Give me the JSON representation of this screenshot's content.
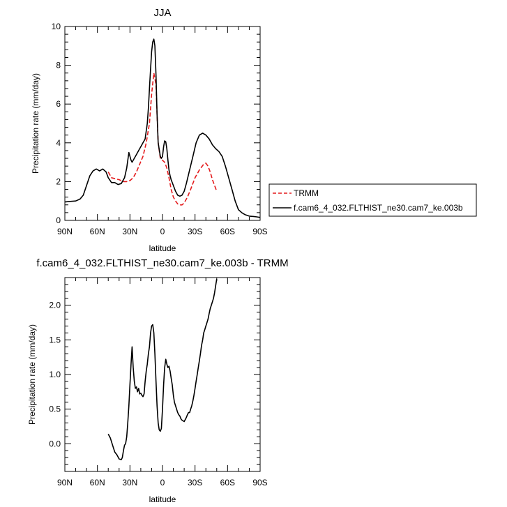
{
  "chart_data": [
    {
      "type": "line",
      "title": "JJA",
      "xlabel": "latitude",
      "ylabel": "Precipitation rate (mm/day)",
      "xlim": [
        90,
        -90
      ],
      "ylim": [
        0,
        10
      ],
      "x_ticks": [
        90,
        60,
        30,
        0,
        -30,
        -60,
        -90
      ],
      "x_tick_labels": [
        "90N",
        "60N",
        "30N",
        "0",
        "30S",
        "60S",
        "90S"
      ],
      "y_ticks": [
        0,
        2,
        4,
        6,
        8,
        10
      ],
      "y_tick_labels": [
        "0",
        "2",
        "4",
        "6",
        "8",
        "10"
      ],
      "legend": {
        "placement": "right",
        "entries": [
          "TRMM",
          "f.cam6_4_032.FLTHIST_ne30.cam7_ke.003b"
        ]
      },
      "series": [
        {
          "name": "TRMM",
          "color": "#e41a1c",
          "dash": true,
          "x": [
            50,
            47,
            44,
            40,
            36,
            33,
            30,
            27,
            24,
            21,
            18,
            15,
            12,
            10,
            8,
            6,
            5,
            4,
            2,
            0,
            -2,
            -4,
            -6,
            -8,
            -10,
            -12,
            -14,
            -16,
            -18,
            -20,
            -23,
            -26,
            -30,
            -34,
            -38,
            -40,
            -42,
            -44,
            -46,
            -48,
            -50
          ],
          "y": [
            2.5,
            2.2,
            2.15,
            2.1,
            2.0,
            2.0,
            2.05,
            2.2,
            2.5,
            2.9,
            3.3,
            4.0,
            5.0,
            6.5,
            7.6,
            7.0,
            5.5,
            4.0,
            3.2,
            3.1,
            3.0,
            2.7,
            2.2,
            1.6,
            1.2,
            1.0,
            0.85,
            0.8,
            0.8,
            0.9,
            1.2,
            1.6,
            2.2,
            2.6,
            2.9,
            2.95,
            2.8,
            2.5,
            2.1,
            1.8,
            1.5
          ]
        },
        {
          "name": "f.cam6_4_032.FLTHIST_ne30.cam7_ke.003b",
          "color": "#000000",
          "dash": false,
          "x": [
            90,
            85,
            80,
            76,
            73,
            70,
            67,
            64,
            61,
            58,
            55,
            52,
            50,
            47,
            44,
            41,
            38,
            35,
            33,
            31,
            29,
            28,
            26,
            24,
            22,
            20,
            18,
            16,
            14,
            13,
            12,
            11,
            10,
            9,
            8,
            7,
            6,
            5,
            4,
            2,
            1,
            0,
            -1,
            -2,
            -3,
            -4,
            -5,
            -6,
            -7,
            -8,
            -10,
            -12,
            -14,
            -16,
            -18,
            -20,
            -22,
            -25,
            -28,
            -31,
            -34,
            -37,
            -40,
            -43,
            -46,
            -49,
            -52,
            -55,
            -58,
            -61,
            -64,
            -67,
            -70,
            -73,
            -76,
            -80,
            -84,
            -87,
            -90
          ],
          "y": [
            0.95,
            0.98,
            1.0,
            1.1,
            1.3,
            1.8,
            2.3,
            2.55,
            2.65,
            2.55,
            2.65,
            2.5,
            2.2,
            1.95,
            1.95,
            1.85,
            1.9,
            2.2,
            2.7,
            3.5,
            3.1,
            3.0,
            3.2,
            3.4,
            3.6,
            3.8,
            4.0,
            4.2,
            5.0,
            5.8,
            6.8,
            7.8,
            8.7,
            9.2,
            9.35,
            9.0,
            7.5,
            5.5,
            4.0,
            3.3,
            3.2,
            3.3,
            3.8,
            4.1,
            4.05,
            3.7,
            3.1,
            2.6,
            2.3,
            2.1,
            1.8,
            1.5,
            1.3,
            1.25,
            1.3,
            1.5,
            1.9,
            2.6,
            3.3,
            4.0,
            4.4,
            4.5,
            4.4,
            4.2,
            3.9,
            3.7,
            3.55,
            3.3,
            2.8,
            2.2,
            1.6,
            1.0,
            0.55,
            0.4,
            0.3,
            0.22,
            0.2,
            0.18,
            0.15
          ]
        }
      ]
    },
    {
      "type": "line",
      "title": "f.cam6_4_032.FLTHIST_ne30.cam7_ke.003b - TRMM",
      "xlabel": "latitude",
      "ylabel": "Precipitation rate (mm/day)",
      "xlim": [
        90,
        -90
      ],
      "ylim": [
        -0.4,
        2.4
      ],
      "x_ticks": [
        90,
        60,
        30,
        0,
        -30,
        -60,
        -90
      ],
      "x_tick_labels": [
        "90N",
        "60N",
        "30N",
        "0",
        "30S",
        "60S",
        "90S"
      ],
      "y_ticks": [
        0.0,
        0.5,
        1.0,
        1.5,
        2.0
      ],
      "y_tick_labels": [
        "0.0",
        "0.5",
        "1.0",
        "1.5",
        "2.0"
      ],
      "series": [
        {
          "color": "#000000",
          "dash": false,
          "x": [
            50,
            48,
            46,
            44,
            42,
            40,
            38,
            37,
            36,
            35,
            34,
            33,
            32,
            31,
            30,
            29,
            28,
            27,
            26,
            25,
            24,
            23,
            22,
            21,
            20,
            19,
            18,
            17,
            16,
            15,
            14,
            13,
            12,
            11,
            10,
            9,
            8,
            7,
            6,
            5,
            4,
            3,
            2,
            1,
            0,
            -1,
            -2,
            -3,
            -4,
            -5,
            -6,
            -7,
            -8,
            -9,
            -10,
            -11,
            -12,
            -13,
            -14,
            -15,
            -16,
            -17,
            -18,
            -19,
            -20,
            -21,
            -22,
            -23,
            -24,
            -25,
            -26,
            -27,
            -28,
            -29,
            -30,
            -31,
            -32,
            -33,
            -34,
            -35,
            -36,
            -37,
            -38,
            -39,
            -40,
            -41,
            -42,
            -43,
            -44,
            -45,
            -46,
            -47,
            -48,
            -49,
            -50
          ],
          "y": [
            0.14,
            0.08,
            -0.02,
            -0.12,
            -0.16,
            -0.22,
            -0.23,
            -0.2,
            -0.1,
            -0.02,
            0.0,
            0.1,
            0.3,
            0.55,
            0.85,
            1.15,
            1.4,
            1.1,
            0.9,
            0.8,
            0.82,
            0.75,
            0.8,
            0.72,
            0.73,
            0.7,
            0.68,
            0.72,
            0.9,
            1.05,
            1.15,
            1.3,
            1.4,
            1.6,
            1.7,
            1.72,
            1.6,
            1.3,
            0.9,
            0.55,
            0.3,
            0.2,
            0.18,
            0.22,
            0.5,
            0.85,
            1.1,
            1.22,
            1.15,
            1.1,
            1.12,
            1.05,
            0.95,
            0.85,
            0.7,
            0.6,
            0.55,
            0.5,
            0.45,
            0.42,
            0.4,
            0.36,
            0.34,
            0.33,
            0.32,
            0.35,
            0.38,
            0.42,
            0.45,
            0.45,
            0.5,
            0.55,
            0.62,
            0.7,
            0.8,
            0.9,
            1.0,
            1.1,
            1.2,
            1.3,
            1.42,
            1.5,
            1.6,
            1.65,
            1.7,
            1.75,
            1.8,
            1.88,
            1.95,
            2.0,
            2.05,
            2.1,
            2.18,
            2.28,
            2.38
          ]
        }
      ]
    }
  ]
}
